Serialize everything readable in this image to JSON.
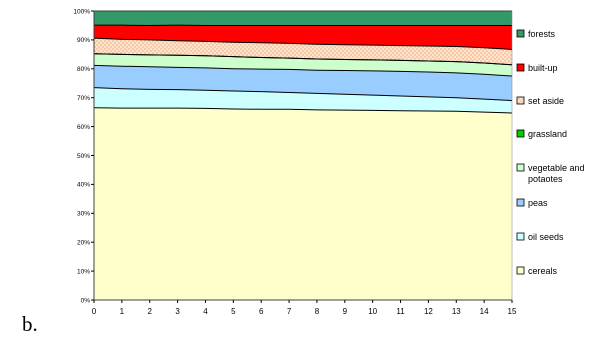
{
  "caption": "b.",
  "chart_data": {
    "type": "area",
    "stacked": "percent",
    "x": [
      0,
      1,
      2,
      3,
      4,
      5,
      6,
      7,
      8,
      9,
      10,
      11,
      12,
      13,
      14,
      15
    ],
    "xlim": [
      0,
      15
    ],
    "ylim": [
      0,
      100
    ],
    "y_ticks": [
      "0%",
      "10%",
      "20%",
      "30%",
      "40%",
      "50%",
      "60%",
      "70%",
      "80%",
      "90%",
      "100%"
    ],
    "legend_position": "right",
    "grid": false,
    "series": [
      {
        "name": "cereals",
        "color": "#ffffcc",
        "values": [
          66.5,
          66.4,
          66.4,
          66.4,
          66.3,
          66.1,
          66.0,
          66.0,
          65.8,
          65.7,
          65.6,
          65.5,
          65.4,
          65.3,
          65.0,
          64.7
        ]
      },
      {
        "name": "oil seeds",
        "color": "#ccffff",
        "values": [
          7.0,
          6.7,
          6.5,
          6.4,
          6.3,
          6.2,
          6.1,
          5.8,
          5.7,
          5.5,
          5.3,
          5.1,
          4.9,
          4.7,
          4.5,
          4.3
        ]
      },
      {
        "name": "peas",
        "color": "#99ccff",
        "values": [
          7.7,
          7.8,
          7.8,
          7.7,
          7.7,
          7.7,
          7.8,
          8.0,
          8.0,
          8.2,
          8.4,
          8.5,
          8.6,
          8.6,
          8.6,
          8.5
        ]
      },
      {
        "name": "vegetable and potaotes",
        "color": "#ccffcc",
        "values": [
          4.0,
          4.1,
          4.1,
          4.2,
          4.2,
          4.2,
          4.0,
          3.9,
          3.9,
          3.8,
          3.8,
          3.8,
          3.8,
          3.9,
          3.9,
          3.9
        ]
      },
      {
        "name": "grassland",
        "color": "#00cc00",
        "values": [
          0,
          0,
          0,
          0,
          0,
          0,
          0,
          0,
          0,
          0,
          0,
          0,
          0,
          0,
          0,
          0
        ]
      },
      {
        "name": "set aside",
        "color": "#ffcc99",
        "pattern": "dots",
        "values": [
          5.4,
          5.2,
          5.2,
          5.0,
          5.0,
          5.0,
          5.1,
          5.1,
          5.1,
          5.1,
          5.1,
          5.1,
          5.2,
          5.2,
          5.3,
          5.3
        ]
      },
      {
        "name": "built-up",
        "color": "#ff0000",
        "values": [
          4.5,
          4.9,
          5.0,
          5.4,
          5.5,
          5.8,
          6.0,
          6.2,
          6.5,
          6.7,
          6.8,
          7.0,
          7.1,
          7.3,
          7.7,
          8.3
        ]
      },
      {
        "name": "forests",
        "color": "#339966",
        "values": [
          4.9,
          4.9,
          5.0,
          4.9,
          5.0,
          5.0,
          5.0,
          5.0,
          5.0,
          5.0,
          5.0,
          5.0,
          5.0,
          5.0,
          5.0,
          5.0
        ]
      }
    ]
  }
}
